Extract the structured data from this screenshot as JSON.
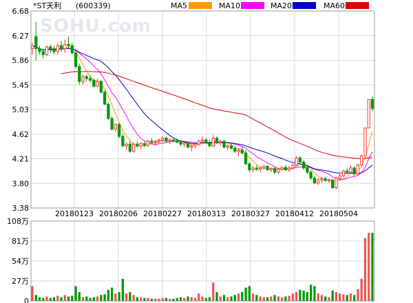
{
  "chart_data": {
    "type": "candlestick",
    "title": "*ST天利",
    "code": "(600339)",
    "watermark": "SOHU.com",
    "legend": [
      {
        "name": "MA5",
        "color": "#ff9900"
      },
      {
        "name": "MA10",
        "color": "#ff00ff"
      },
      {
        "name": "MA20",
        "color": "#0000cc"
      },
      {
        "name": "MA60",
        "color": "#dd0000"
      }
    ],
    "price_axis": {
      "min": 3.38,
      "max": 6.68,
      "ticks": [
        "6.68",
        "6.27",
        "5.86",
        "5.45",
        "5.03",
        "4.62",
        "4.21",
        "3.80",
        "3.38"
      ]
    },
    "volume_axis": {
      "min": 0,
      "max": 108,
      "ticks": [
        "108万",
        "81万",
        "54万",
        "27万",
        "0"
      ]
    },
    "x_ticks": [
      "20180123",
      "20180206",
      "20180227",
      "20180313",
      "20180327",
      "20180412",
      "20180504"
    ],
    "colors": {
      "up": "#ff3333",
      "down": "#009900",
      "volume": "#ee5555",
      "grid": "#d8d8d8",
      "frame": "#999999"
    },
    "candles": [
      [
        6.05,
        6.15,
        5.95,
        6.1,
        20
      ],
      [
        6.25,
        6.5,
        5.85,
        6.05,
        8
      ],
      [
        6.05,
        6.1,
        5.95,
        6.0,
        5
      ],
      [
        6.0,
        6.05,
        5.88,
        5.95,
        4
      ],
      [
        5.95,
        6.1,
        5.92,
        6.08,
        6
      ],
      [
        6.08,
        6.12,
        5.98,
        6.05,
        4
      ],
      [
        6.05,
        6.1,
        5.95,
        6.0,
        5
      ],
      [
        6.0,
        6.15,
        5.95,
        6.1,
        7
      ],
      [
        6.1,
        6.18,
        6.0,
        6.05,
        5
      ],
      [
        6.05,
        6.2,
        5.98,
        6.12,
        8
      ],
      [
        6.12,
        6.25,
        6.05,
        6.1,
        6
      ],
      [
        6.1,
        6.15,
        5.95,
        5.98,
        7
      ],
      [
        5.98,
        6.0,
        5.72,
        5.75,
        20
      ],
      [
        5.75,
        5.8,
        5.45,
        5.5,
        12
      ],
      [
        5.5,
        5.62,
        5.45,
        5.58,
        5
      ],
      [
        5.58,
        5.62,
        5.5,
        5.55,
        6
      ],
      [
        5.55,
        5.6,
        5.48,
        5.52,
        4
      ],
      [
        5.52,
        5.55,
        5.4,
        5.42,
        5
      ],
      [
        5.42,
        5.55,
        5.4,
        5.5,
        6
      ],
      [
        5.5,
        5.52,
        5.3,
        5.32,
        8
      ],
      [
        5.32,
        5.35,
        5.1,
        5.12,
        9
      ],
      [
        5.12,
        5.15,
        4.85,
        4.88,
        15
      ],
      [
        4.88,
        4.92,
        4.68,
        4.7,
        18
      ],
      [
        4.7,
        4.8,
        4.65,
        4.78,
        10
      ],
      [
        4.78,
        4.8,
        4.55,
        4.58,
        12
      ],
      [
        4.58,
        4.62,
        4.4,
        4.42,
        30
      ],
      [
        4.42,
        4.48,
        4.35,
        4.45,
        10
      ],
      [
        4.45,
        4.5,
        4.3,
        4.33,
        12
      ],
      [
        4.33,
        4.48,
        4.3,
        4.45,
        8
      ],
      [
        4.45,
        4.5,
        4.38,
        4.42,
        5
      ],
      [
        4.42,
        4.48,
        4.36,
        4.46,
        5
      ],
      [
        4.46,
        4.5,
        4.4,
        4.43,
        4
      ],
      [
        4.43,
        4.52,
        4.4,
        4.5,
        4
      ],
      [
        4.5,
        4.55,
        4.45,
        4.48,
        3
      ],
      [
        4.48,
        4.52,
        4.42,
        4.5,
        3
      ],
      [
        4.5,
        4.55,
        4.46,
        4.52,
        3
      ],
      [
        4.52,
        4.58,
        4.48,
        4.55,
        4
      ],
      [
        4.55,
        4.58,
        4.48,
        4.5,
        4
      ],
      [
        4.5,
        4.55,
        4.45,
        4.52,
        3
      ],
      [
        4.52,
        4.56,
        4.48,
        4.5,
        3
      ],
      [
        4.5,
        4.55,
        4.46,
        4.48,
        4
      ],
      [
        4.48,
        4.52,
        4.42,
        4.45,
        5
      ],
      [
        4.45,
        4.5,
        4.4,
        4.47,
        4
      ],
      [
        4.47,
        4.5,
        4.38,
        4.4,
        6
      ],
      [
        4.4,
        4.45,
        4.33,
        4.42,
        5
      ],
      [
        4.42,
        4.48,
        4.38,
        4.45,
        4
      ],
      [
        4.45,
        4.52,
        4.42,
        4.5,
        10
      ],
      [
        4.5,
        4.58,
        4.45,
        4.52,
        6
      ],
      [
        4.52,
        4.55,
        4.45,
        4.48,
        4
      ],
      [
        4.48,
        4.52,
        4.4,
        4.42,
        5
      ],
      [
        4.42,
        4.6,
        4.4,
        4.55,
        25
      ],
      [
        4.55,
        4.58,
        4.45,
        4.48,
        12
      ],
      [
        4.48,
        4.52,
        4.42,
        4.5,
        6
      ],
      [
        4.5,
        4.52,
        4.38,
        4.4,
        8
      ],
      [
        4.4,
        4.45,
        4.35,
        4.42,
        5
      ],
      [
        4.42,
        4.46,
        4.36,
        4.38,
        6
      ],
      [
        4.38,
        4.42,
        4.3,
        4.33,
        8
      ],
      [
        4.33,
        4.38,
        4.25,
        4.35,
        10
      ],
      [
        4.35,
        4.4,
        4.28,
        4.3,
        12
      ],
      [
        4.3,
        4.35,
        4.1,
        4.12,
        18
      ],
      [
        4.12,
        4.15,
        3.98,
        4.02,
        20
      ],
      [
        4.02,
        4.08,
        3.98,
        4.05,
        10
      ],
      [
        4.05,
        4.1,
        4.0,
        4.03,
        8
      ],
      [
        4.03,
        4.08,
        3.98,
        4.05,
        6
      ],
      [
        4.05,
        4.1,
        4.02,
        4.08,
        5
      ],
      [
        4.08,
        4.1,
        4.0,
        4.02,
        5
      ],
      [
        4.02,
        4.06,
        3.98,
        4.04,
        6
      ],
      [
        4.04,
        4.08,
        3.95,
        3.98,
        8
      ],
      [
        3.98,
        4.05,
        3.95,
        4.03,
        6
      ],
      [
        4.03,
        4.08,
        4.0,
        4.06,
        5
      ],
      [
        4.06,
        4.1,
        4.0,
        4.02,
        6
      ],
      [
        4.02,
        4.08,
        3.98,
        4.05,
        7
      ],
      [
        4.05,
        4.12,
        4.02,
        4.1,
        10
      ],
      [
        4.1,
        4.25,
        4.08,
        4.22,
        12
      ],
      [
        4.22,
        4.25,
        4.12,
        4.15,
        15
      ],
      [
        4.15,
        4.18,
        4.02,
        4.05,
        14
      ],
      [
        4.05,
        4.08,
        3.95,
        3.98,
        12
      ],
      [
        3.98,
        4.02,
        3.85,
        3.88,
        22
      ],
      [
        3.88,
        3.92,
        3.78,
        3.8,
        20
      ],
      [
        3.8,
        3.88,
        3.76,
        3.85,
        10
      ],
      [
        3.85,
        3.9,
        3.8,
        3.87,
        8
      ],
      [
        3.87,
        3.9,
        3.82,
        3.84,
        6
      ],
      [
        3.84,
        3.88,
        3.8,
        3.85,
        5
      ],
      [
        3.85,
        3.86,
        3.7,
        3.72,
        14
      ],
      [
        3.72,
        3.9,
        3.7,
        3.88,
        12
      ],
      [
        3.88,
        3.95,
        3.85,
        3.92,
        10
      ],
      [
        3.92,
        4.02,
        3.9,
        4.0,
        9
      ],
      [
        4.0,
        4.05,
        3.95,
        3.98,
        8
      ],
      [
        3.98,
        4.1,
        3.96,
        4.05,
        10
      ],
      [
        4.05,
        4.08,
        3.92,
        3.95,
        8
      ],
      [
        3.95,
        4.12,
        3.94,
        4.1,
        16
      ],
      [
        4.1,
        4.28,
        4.08,
        4.25,
        30
      ],
      [
        4.25,
        4.72,
        4.25,
        4.72,
        85
      ],
      [
        4.72,
        5.2,
        4.72,
        5.2,
        92
      ],
      [
        5.2,
        5.25,
        5.0,
        5.05,
        92
      ]
    ]
  }
}
